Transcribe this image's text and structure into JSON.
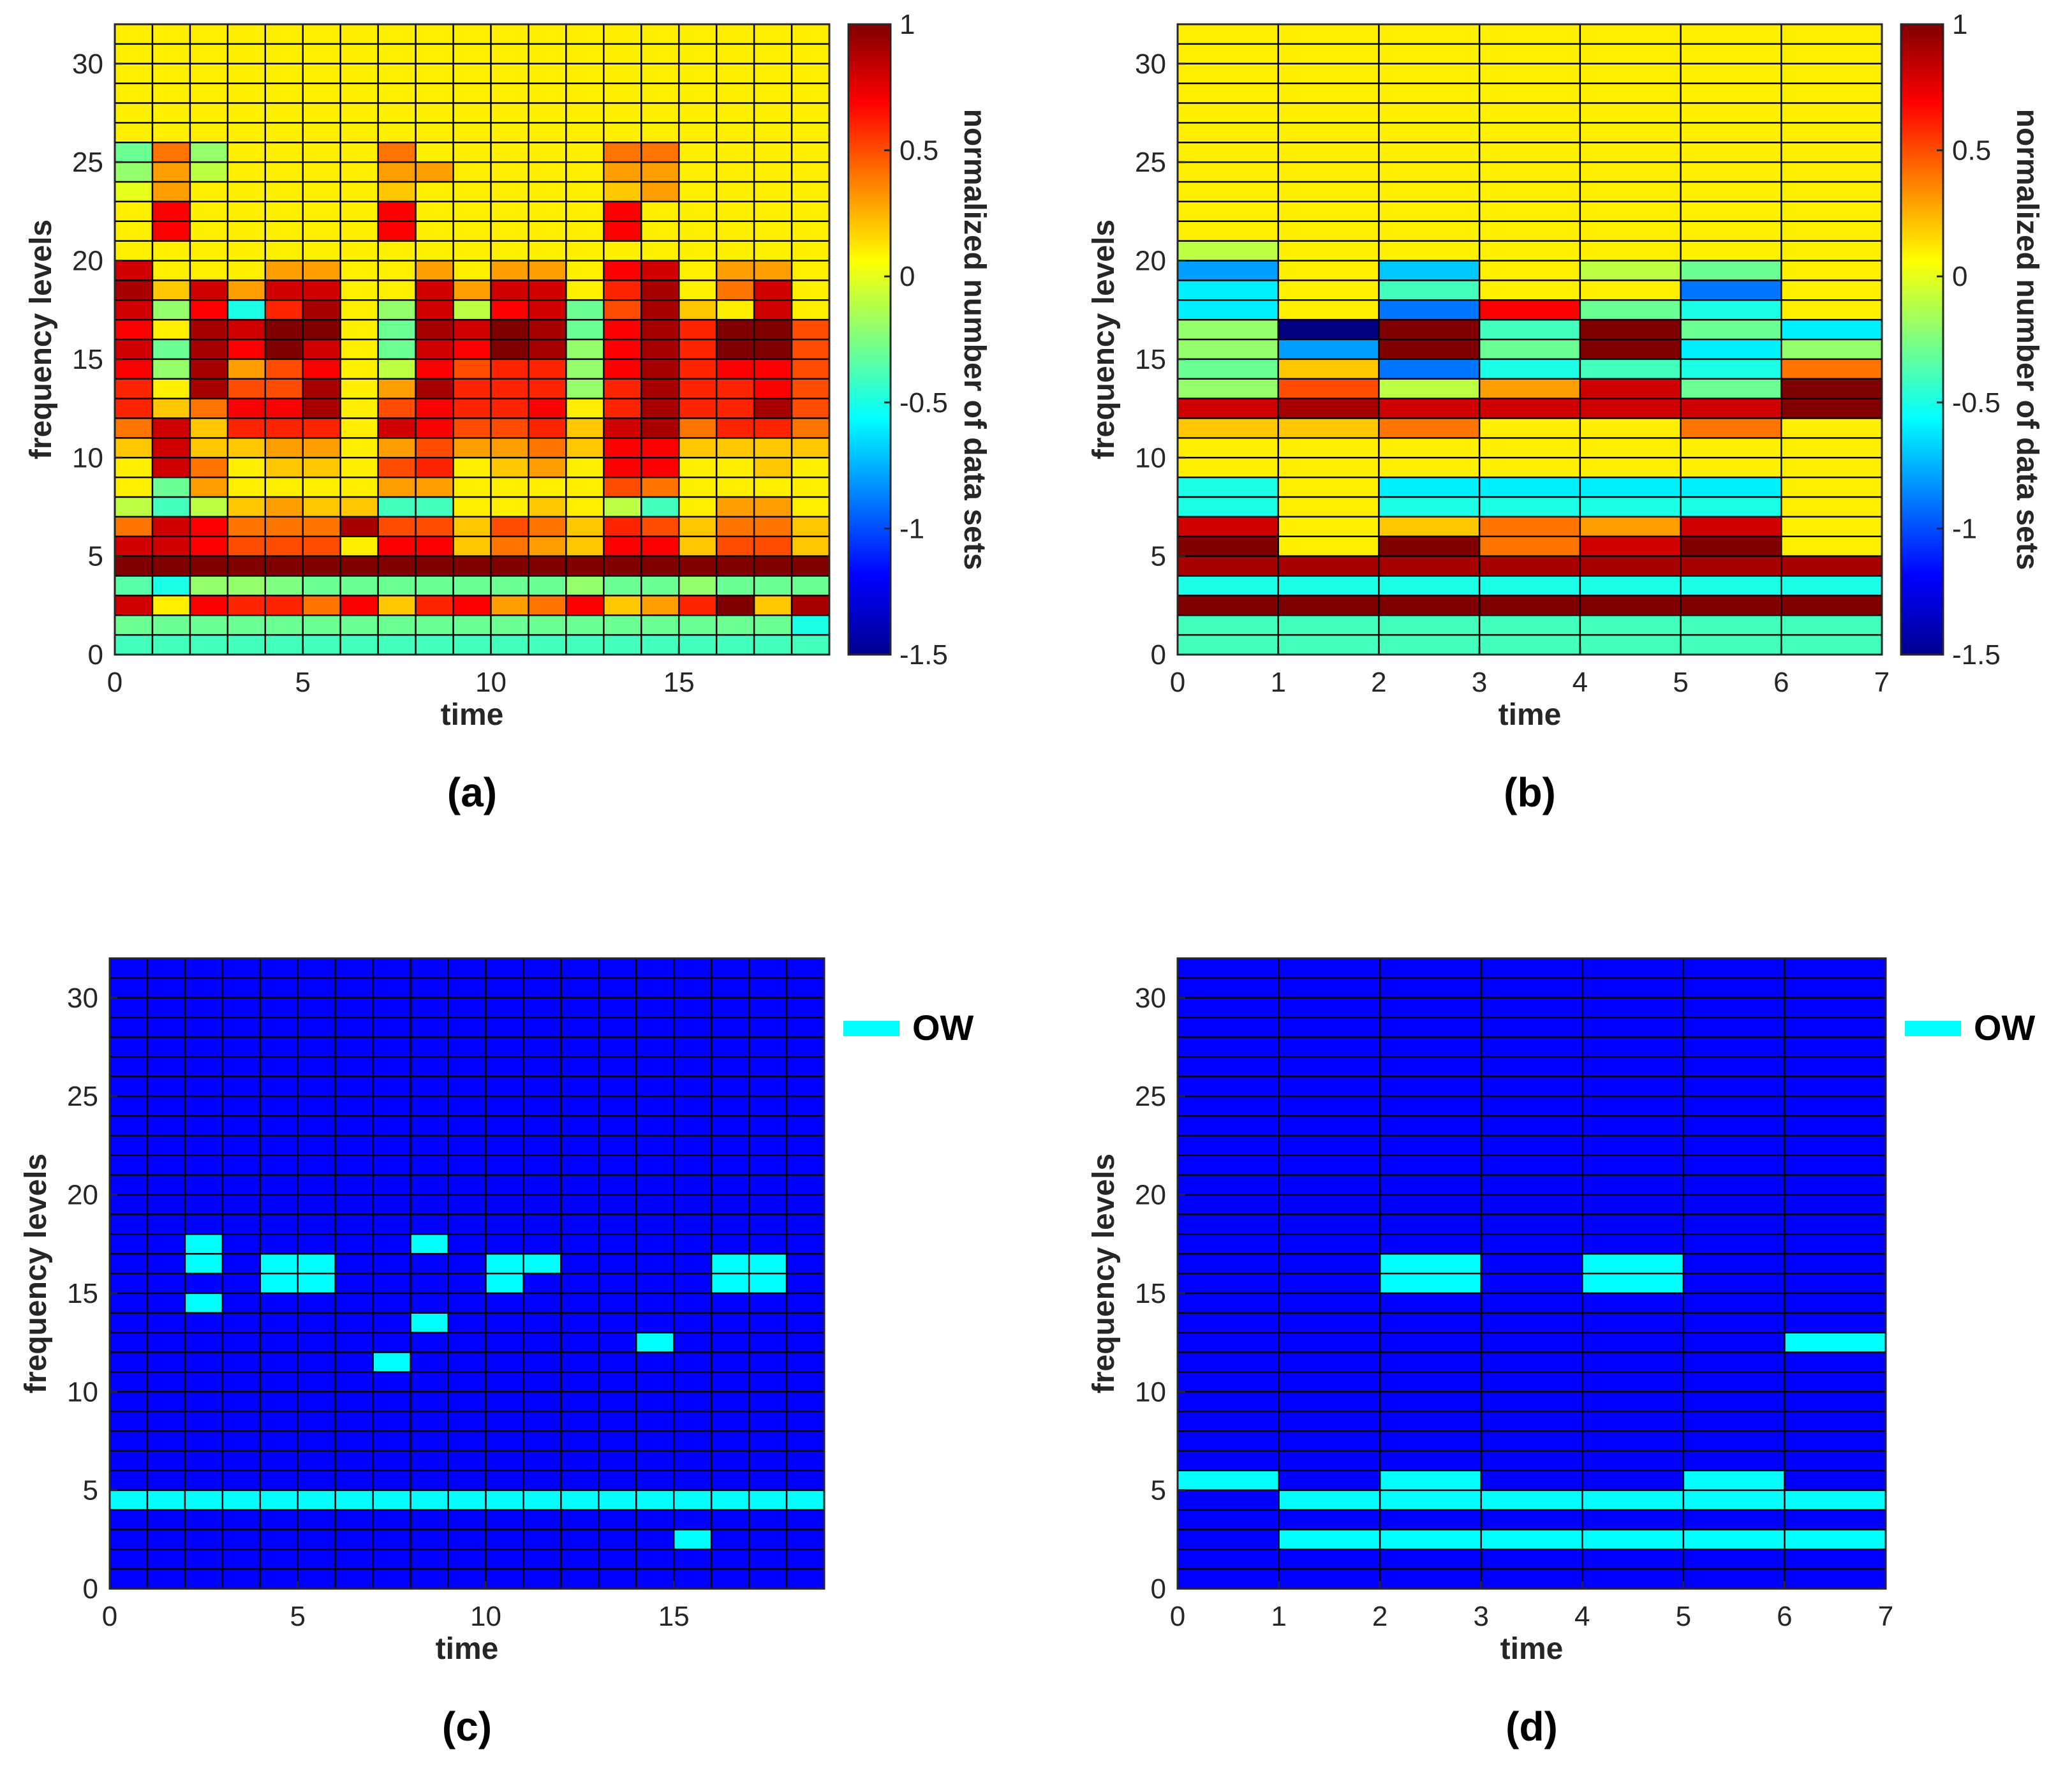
{
  "chart_data": [
    {
      "id": "a",
      "type": "heatmap",
      "caption": "(a)",
      "xlabel": "time",
      "ylabel": "frequency levels",
      "xlim": [
        0,
        19
      ],
      "ylim": [
        0,
        32
      ],
      "xticks": [
        0,
        5,
        10,
        15
      ],
      "yticks": [
        0,
        5,
        10,
        15,
        20,
        25,
        30
      ],
      "colorbar": {
        "label": "normalized number of data sets",
        "range": [
          -1.5,
          1
        ],
        "ticks": [
          "1",
          "0.5",
          "0",
          "-0.5",
          "-1",
          "-1.5"
        ]
      },
      "rows_from_bottom": [
        [
          -0.4,
          -0.4,
          -0.4,
          -0.4,
          -0.4,
          -0.4,
          -0.4,
          -0.4,
          -0.4,
          -0.4,
          -0.4,
          -0.4,
          -0.4,
          -0.4,
          -0.4,
          -0.4,
          -0.4,
          -0.4,
          -0.4
        ],
        [
          -0.3,
          -0.3,
          -0.3,
          -0.3,
          -0.3,
          -0.3,
          -0.3,
          -0.3,
          -0.3,
          -0.3,
          -0.3,
          -0.3,
          -0.3,
          -0.3,
          -0.3,
          -0.3,
          -0.3,
          -0.3,
          -0.5
        ],
        [
          0.8,
          0.1,
          0.7,
          0.6,
          0.6,
          0.4,
          0.7,
          0.2,
          0.6,
          0.7,
          0.3,
          0.4,
          0.7,
          0.2,
          0.3,
          0.6,
          1.0,
          0.2,
          0.9
        ],
        [
          -0.35,
          -0.5,
          -0.2,
          -0.2,
          -0.25,
          -0.3,
          -0.3,
          -0.3,
          -0.3,
          -0.3,
          -0.3,
          -0.3,
          -0.2,
          -0.3,
          -0.3,
          -0.2,
          -0.3,
          -0.3,
          -0.3
        ],
        [
          1,
          1,
          1,
          1,
          1,
          1,
          1,
          1,
          1,
          1,
          1,
          1,
          1,
          1,
          1,
          1,
          1,
          1,
          1
        ],
        [
          0.8,
          0.8,
          0.7,
          0.5,
          0.5,
          0.5,
          0.1,
          0.7,
          0.7,
          0.2,
          0.4,
          0.3,
          0.2,
          0.7,
          0.7,
          0.2,
          0.5,
          0.5,
          0.2
        ],
        [
          0.4,
          0.8,
          0.7,
          0.4,
          0.4,
          0.4,
          0.9,
          0.5,
          0.5,
          0.2,
          0.5,
          0.4,
          0.2,
          0.6,
          0.5,
          0.2,
          0.4,
          0.4,
          0.2
        ],
        [
          -0.1,
          -0.4,
          -0.1,
          0.2,
          0.3,
          0.2,
          0.2,
          -0.4,
          -0.4,
          0.1,
          0.1,
          0.2,
          0.1,
          -0.1,
          -0.4,
          0.1,
          0.3,
          0.3,
          0.1
        ],
        [
          0.1,
          -0.3,
          0.3,
          0.1,
          0.1,
          0.1,
          0.1,
          0.3,
          0.3,
          0.1,
          0.1,
          0.1,
          0.1,
          0.5,
          0.4,
          0.1,
          0.1,
          0.1,
          0.1
        ],
        [
          0.1,
          0.8,
          0.4,
          0.1,
          0.2,
          0.2,
          0.1,
          0.5,
          0.6,
          0.1,
          0.2,
          0.3,
          0.1,
          0.7,
          0.7,
          0.1,
          0.1,
          0.2,
          0.1
        ],
        [
          0.2,
          0.8,
          0.2,
          0.2,
          0.3,
          0.3,
          0.1,
          0.3,
          0.5,
          0.3,
          0.3,
          0.4,
          0.2,
          0.7,
          0.7,
          0.2,
          0.2,
          0.2,
          0.2
        ],
        [
          0.4,
          0.8,
          0.2,
          0.6,
          0.6,
          0.6,
          0.1,
          0.8,
          0.7,
          0.5,
          0.5,
          0.6,
          0.2,
          0.8,
          0.9,
          0.4,
          0.6,
          0.6,
          0.4
        ],
        [
          0.6,
          0.2,
          0.4,
          0.7,
          0.7,
          0.9,
          0.1,
          0.5,
          0.7,
          0.6,
          0.6,
          0.7,
          0.1,
          0.6,
          0.9,
          0.6,
          0.6,
          0.9,
          0.5
        ],
        [
          0.6,
          0.1,
          0.9,
          0.5,
          0.5,
          0.9,
          0.1,
          0.3,
          0.9,
          0.6,
          0.6,
          0.6,
          -0.2,
          0.6,
          0.9,
          0.6,
          0.6,
          0.7,
          0.5
        ],
        [
          0.7,
          -0.2,
          0.9,
          0.3,
          0.5,
          0.7,
          0.1,
          -0.1,
          0.7,
          0.5,
          0.6,
          0.6,
          -0.2,
          0.7,
          0.9,
          0.6,
          0.7,
          0.7,
          0.5
        ],
        [
          0.8,
          -0.3,
          0.9,
          0.7,
          1.0,
          0.8,
          0.1,
          -0.3,
          0.8,
          0.7,
          1.0,
          0.9,
          -0.2,
          0.7,
          0.9,
          0.6,
          1.0,
          1.0,
          0.5
        ],
        [
          0.7,
          0.1,
          0.9,
          0.8,
          1.0,
          1.0,
          0.1,
          -0.3,
          0.9,
          0.8,
          1.0,
          0.9,
          -0.3,
          0.7,
          0.9,
          0.6,
          1.0,
          1.0,
          0.5
        ],
        [
          0.8,
          -0.2,
          0.7,
          -0.5,
          0.6,
          0.9,
          0.1,
          -0.2,
          0.8,
          -0.1,
          0.7,
          0.8,
          -0.3,
          0.5,
          0.9,
          0.2,
          0.1,
          0.8,
          0.1
        ],
        [
          0.9,
          0.2,
          0.8,
          0.3,
          0.8,
          0.8,
          0.1,
          0.1,
          0.8,
          0.3,
          0.8,
          0.8,
          0.1,
          0.6,
          0.9,
          0.1,
          0.4,
          0.8,
          0.1
        ],
        [
          0.8,
          0.1,
          0.1,
          0.1,
          0.3,
          0.3,
          0.1,
          0.1,
          0.3,
          0.1,
          0.3,
          0.3,
          0.1,
          0.7,
          0.8,
          0.1,
          0.3,
          0.3,
          0.1
        ],
        [
          0.1,
          0.1,
          0.1,
          0.1,
          0.1,
          0.1,
          0.1,
          0.1,
          0.1,
          0.1,
          0.1,
          0.1,
          0.1,
          0.1,
          0.1,
          0.1,
          0.1,
          0.1,
          0.1
        ],
        [
          0.1,
          0.7,
          0.1,
          0.1,
          0.1,
          0.1,
          0.1,
          0.7,
          0.1,
          0.1,
          0.1,
          0.1,
          0.1,
          0.7,
          0.1,
          0.1,
          0.1,
          0.1,
          0.1
        ],
        [
          0.1,
          0.7,
          0.1,
          0.1,
          0.1,
          0.1,
          0.1,
          0.7,
          0.1,
          0.1,
          0.1,
          0.1,
          0.1,
          0.7,
          0.1,
          0.1,
          0.1,
          0.1,
          0.1
        ],
        [
          0.0,
          0.3,
          0.1,
          0.1,
          0.1,
          0.1,
          0.1,
          0.2,
          0.1,
          0.1,
          0.1,
          0.1,
          0.1,
          0.2,
          0.3,
          0.1,
          0.1,
          0.1,
          0.1
        ],
        [
          -0.2,
          0.3,
          -0.1,
          0.1,
          0.1,
          0.1,
          0.1,
          0.3,
          0.3,
          0.1,
          0.1,
          0.1,
          0.1,
          0.3,
          0.3,
          0.1,
          0.1,
          0.1,
          0.1
        ],
        [
          -0.3,
          0.4,
          -0.2,
          0.1,
          0.1,
          0.1,
          0.1,
          0.4,
          0.1,
          0.1,
          0.1,
          0.1,
          0.1,
          0.4,
          0.4,
          0.1,
          0.1,
          0.1,
          0.1
        ],
        [
          0.1,
          0.1,
          0.1,
          0.1,
          0.1,
          0.1,
          0.1,
          0.1,
          0.1,
          0.1,
          0.1,
          0.1,
          0.1,
          0.1,
          0.1,
          0.1,
          0.1,
          0.1,
          0.1
        ],
        [
          0.1,
          0.1,
          0.1,
          0.1,
          0.1,
          0.1,
          0.1,
          0.1,
          0.1,
          0.1,
          0.1,
          0.1,
          0.1,
          0.1,
          0.1,
          0.1,
          0.1,
          0.1,
          0.1
        ],
        [
          0.1,
          0.1,
          0.1,
          0.1,
          0.1,
          0.1,
          0.1,
          0.1,
          0.1,
          0.1,
          0.1,
          0.1,
          0.1,
          0.1,
          0.1,
          0.1,
          0.1,
          0.1,
          0.1
        ],
        [
          0.1,
          0.1,
          0.1,
          0.1,
          0.1,
          0.1,
          0.1,
          0.1,
          0.1,
          0.1,
          0.1,
          0.1,
          0.1,
          0.1,
          0.1,
          0.1,
          0.1,
          0.1,
          0.1
        ],
        [
          0.1,
          0.1,
          0.1,
          0.1,
          0.1,
          0.1,
          0.1,
          0.1,
          0.1,
          0.1,
          0.1,
          0.1,
          0.1,
          0.1,
          0.1,
          0.1,
          0.1,
          0.1,
          0.1
        ],
        [
          0.1,
          0.1,
          0.1,
          0.1,
          0.1,
          0.1,
          0.1,
          0.1,
          0.1,
          0.1,
          0.1,
          0.1,
          0.1,
          0.1,
          0.1,
          0.1,
          0.1,
          0.1,
          0.1
        ]
      ]
    },
    {
      "id": "b",
      "type": "heatmap",
      "caption": "(b)",
      "xlabel": "time",
      "ylabel": "frequency levels",
      "xlim": [
        0,
        7
      ],
      "ylim": [
        0,
        32
      ],
      "xticks": [
        0,
        1,
        2,
        3,
        4,
        5,
        6,
        7
      ],
      "yticks": [
        0,
        5,
        10,
        15,
        20,
        25,
        30
      ],
      "colorbar": {
        "label": "normalized number of data sets",
        "range": [
          -1.5,
          1
        ],
        "ticks": [
          "1",
          "0.5",
          "0",
          "-0.5",
          "-1",
          "-1.5"
        ]
      },
      "rows_from_bottom": [
        [
          -0.4,
          -0.4,
          -0.4,
          -0.4,
          -0.4,
          -0.4,
          -0.4
        ],
        [
          -0.4,
          -0.4,
          -0.4,
          -0.4,
          -0.4,
          -0.4,
          -0.4
        ],
        [
          1.0,
          1.0,
          1.0,
          1.0,
          1.0,
          1.0,
          1.0
        ],
        [
          -0.5,
          -0.5,
          -0.5,
          -0.5,
          -0.5,
          -0.5,
          -0.5
        ],
        [
          0.9,
          0.9,
          0.9,
          0.9,
          0.9,
          0.9,
          0.9
        ],
        [
          1.0,
          0.1,
          1.0,
          0.4,
          0.8,
          1.0,
          0.1
        ],
        [
          0.8,
          0.1,
          0.2,
          0.4,
          0.3,
          0.8,
          0.1
        ],
        [
          -0.5,
          0.1,
          -0.5,
          -0.5,
          -0.5,
          -0.5,
          0.1
        ],
        [
          -0.5,
          0.1,
          -0.6,
          -0.6,
          -0.6,
          -0.6,
          0.1
        ],
        [
          0.1,
          0.1,
          0.1,
          0.1,
          0.1,
          0.1,
          0.1
        ],
        [
          0.1,
          0.1,
          0.1,
          0.1,
          0.1,
          0.1,
          0.1
        ],
        [
          0.2,
          0.2,
          0.4,
          0.1,
          0.1,
          0.4,
          0.1
        ],
        [
          0.8,
          0.9,
          0.8,
          0.8,
          0.8,
          0.8,
          1.0
        ],
        [
          -0.2,
          0.5,
          -0.1,
          0.3,
          0.8,
          -0.3,
          1.0
        ],
        [
          -0.3,
          0.2,
          -0.9,
          -0.5,
          -0.4,
          -0.5,
          0.4
        ],
        [
          -0.2,
          -0.8,
          1.0,
          -0.3,
          1.0,
          -0.6,
          -0.2
        ],
        [
          -0.2,
          -1.5,
          1.0,
          -0.4,
          1.0,
          -0.3,
          -0.6
        ],
        [
          -0.6,
          0.1,
          -0.9,
          0.7,
          -0.3,
          -0.5,
          0.1
        ],
        [
          -0.6,
          0.1,
          -0.4,
          0.1,
          0.1,
          -0.9,
          0.1
        ],
        [
          -0.8,
          0.1,
          -0.7,
          0.1,
          -0.1,
          -0.3,
          0.1
        ],
        [
          -0.1,
          0.1,
          0.1,
          0.1,
          0.1,
          0.1,
          0.1
        ],
        [
          0.1,
          0.1,
          0.1,
          0.1,
          0.1,
          0.1,
          0.1
        ],
        [
          0.1,
          0.1,
          0.1,
          0.1,
          0.1,
          0.1,
          0.1
        ],
        [
          0.1,
          0.1,
          0.1,
          0.1,
          0.1,
          0.1,
          0.1
        ],
        [
          0.1,
          0.1,
          0.1,
          0.1,
          0.1,
          0.1,
          0.1
        ],
        [
          0.1,
          0.1,
          0.1,
          0.1,
          0.1,
          0.1,
          0.1
        ],
        [
          0.1,
          0.1,
          0.1,
          0.1,
          0.1,
          0.1,
          0.1
        ],
        [
          0.1,
          0.1,
          0.1,
          0.1,
          0.1,
          0.1,
          0.1
        ],
        [
          0.1,
          0.1,
          0.1,
          0.1,
          0.1,
          0.1,
          0.1
        ],
        [
          0.1,
          0.1,
          0.1,
          0.1,
          0.1,
          0.1,
          0.1
        ],
        [
          0.1,
          0.1,
          0.1,
          0.1,
          0.1,
          0.1,
          0.1
        ],
        [
          0.1,
          0.1,
          0.1,
          0.1,
          0.1,
          0.1,
          0.1
        ]
      ]
    },
    {
      "id": "c",
      "type": "heatmap",
      "caption": "(c)",
      "xlabel": "time",
      "ylabel": "frequency levels",
      "xlim": [
        0,
        19
      ],
      "ylim": [
        0,
        32
      ],
      "xticks": [
        0,
        5,
        10,
        15
      ],
      "yticks": [
        0,
        5,
        10,
        15,
        20,
        25,
        30
      ],
      "legend": {
        "label": "OW",
        "color": "#00FFFF",
        "position": "top-right outside"
      },
      "background_color": "#0000FF",
      "ow_cells": [
        [
          0,
          4
        ],
        [
          1,
          4
        ],
        [
          2,
          4
        ],
        [
          3,
          4
        ],
        [
          4,
          4
        ],
        [
          5,
          4
        ],
        [
          6,
          4
        ],
        [
          7,
          4
        ],
        [
          8,
          4
        ],
        [
          9,
          4
        ],
        [
          10,
          4
        ],
        [
          11,
          4
        ],
        [
          12,
          4
        ],
        [
          13,
          4
        ],
        [
          14,
          4
        ],
        [
          15,
          4
        ],
        [
          16,
          4
        ],
        [
          17,
          4
        ],
        [
          18,
          4
        ],
        [
          15,
          2
        ],
        [
          2,
          14
        ],
        [
          2,
          16
        ],
        [
          2,
          17
        ],
        [
          4,
          15
        ],
        [
          4,
          16
        ],
        [
          5,
          15
        ],
        [
          5,
          16
        ],
        [
          7,
          11
        ],
        [
          8,
          13
        ],
        [
          8,
          17
        ],
        [
          10,
          15
        ],
        [
          10,
          16
        ],
        [
          11,
          16
        ],
        [
          14,
          12
        ],
        [
          16,
          15
        ],
        [
          16,
          16
        ],
        [
          17,
          15
        ],
        [
          17,
          16
        ]
      ]
    },
    {
      "id": "d",
      "type": "heatmap",
      "caption": "(d)",
      "xlabel": "time",
      "ylabel": "frequency levels",
      "xlim": [
        0,
        7
      ],
      "ylim": [
        0,
        32
      ],
      "xticks": [
        0,
        1,
        2,
        3,
        4,
        5,
        6,
        7
      ],
      "yticks": [
        0,
        5,
        10,
        15,
        20,
        25,
        30
      ],
      "legend": {
        "label": "OW",
        "color": "#00FFFF",
        "position": "top-right outside"
      },
      "background_color": "#0000FF",
      "ow_cells": [
        [
          0,
          5
        ],
        [
          1,
          2
        ],
        [
          2,
          2
        ],
        [
          3,
          2
        ],
        [
          4,
          2
        ],
        [
          5,
          2
        ],
        [
          6,
          2
        ],
        [
          1,
          4
        ],
        [
          2,
          4
        ],
        [
          3,
          4
        ],
        [
          4,
          4
        ],
        [
          5,
          4
        ],
        [
          6,
          4
        ],
        [
          2,
          5
        ],
        [
          5,
          5
        ],
        [
          2,
          15
        ],
        [
          2,
          16
        ],
        [
          4,
          15
        ],
        [
          4,
          16
        ],
        [
          6,
          12
        ]
      ]
    }
  ]
}
